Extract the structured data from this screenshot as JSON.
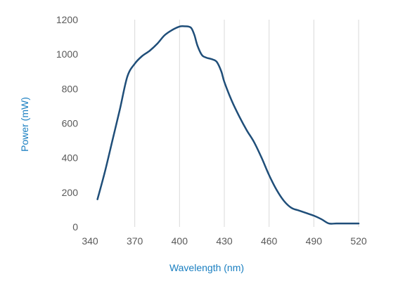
{
  "chart_data": {
    "type": "line",
    "xlabel": "Wavelength (nm)",
    "ylabel": "Power (mW)",
    "xlim": [
      340,
      520
    ],
    "ylim": [
      0,
      1200
    ],
    "xticks": [
      340,
      370,
      400,
      430,
      460,
      490,
      520
    ],
    "yticks": [
      0,
      200,
      400,
      600,
      800,
      1000,
      1200
    ],
    "grid": "vertical",
    "series": [
      {
        "color": "#1f4e79",
        "x": [
          345,
          350,
          355,
          360,
          365,
          370,
          375,
          380,
          385,
          390,
          395,
          400,
          403,
          406,
          408,
          410,
          412,
          415,
          418,
          420,
          422,
          425,
          428,
          430,
          435,
          440,
          445,
          450,
          455,
          460,
          465,
          470,
          475,
          480,
          485,
          490,
          495,
          500,
          505,
          510,
          515,
          520
        ],
        "y": [
          160,
          320,
          500,
          680,
          870,
          945,
          990,
          1020,
          1060,
          1110,
          1140,
          1160,
          1162,
          1160,
          1150,
          1110,
          1050,
          995,
          980,
          975,
          970,
          955,
          900,
          840,
          730,
          640,
          560,
          490,
          400,
          300,
          215,
          150,
          110,
          95,
          80,
          65,
          45,
          20,
          20,
          20,
          20,
          20
        ]
      }
    ]
  }
}
